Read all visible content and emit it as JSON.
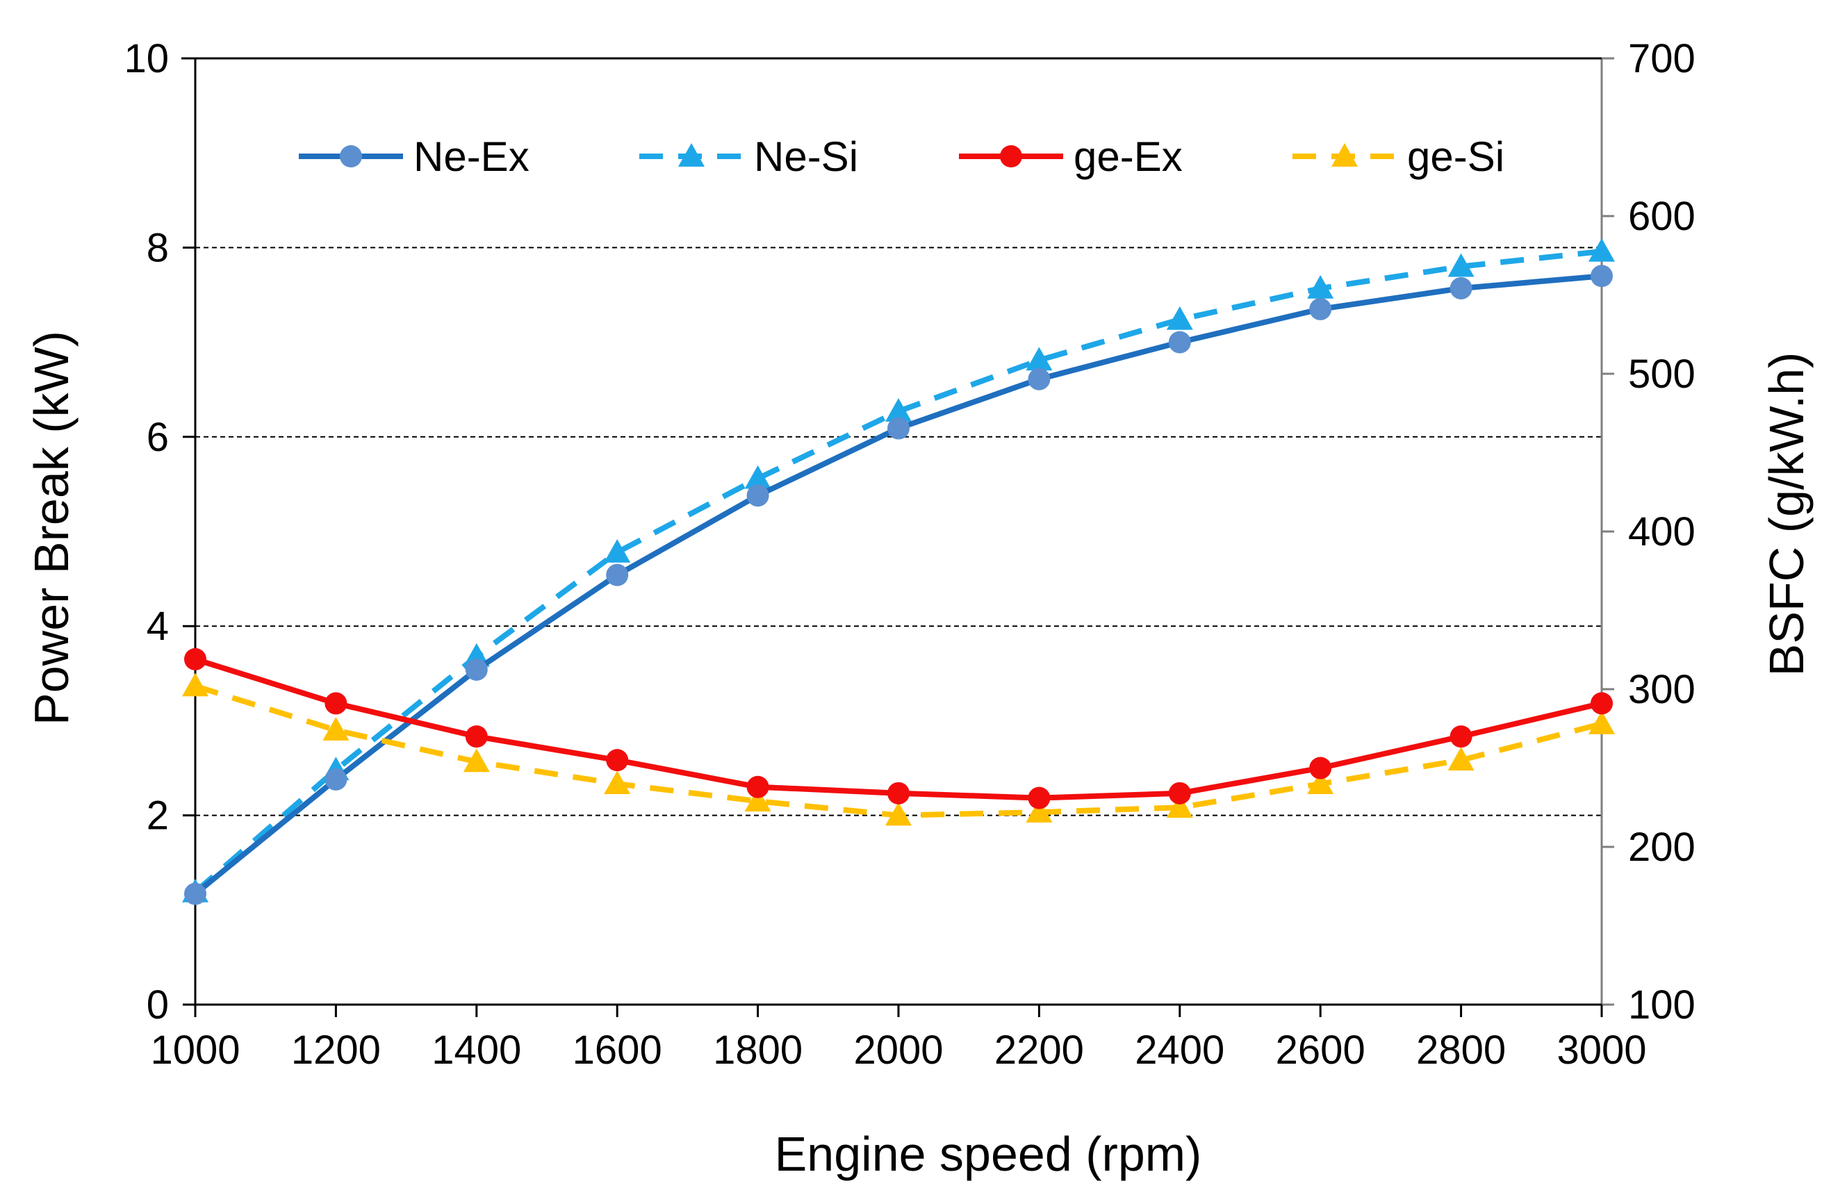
{
  "chart_data": {
    "type": "line",
    "title": "",
    "xlabel": "Engine speed (rpm)",
    "ylabel": "Power Break (kW)",
    "y2label": "BSFC (g/kW.h)",
    "x": [
      1000,
      1200,
      1400,
      1600,
      1800,
      2000,
      2200,
      2400,
      2600,
      2800,
      3000
    ],
    "xlim": [
      1000,
      3000
    ],
    "ylim": [
      0,
      10
    ],
    "y2lim": [
      100,
      700
    ],
    "xticks": [
      "1000",
      "1200",
      "1400",
      "1600",
      "1800",
      "2000",
      "2200",
      "2400",
      "2600",
      "2800",
      "3000"
    ],
    "yticks": [
      "0",
      "2",
      "4",
      "6",
      "8",
      "10"
    ],
    "y2ticks": [
      "100",
      "200",
      "300",
      "400",
      "500",
      "600",
      "700"
    ],
    "grid": "horizontal dashed at y = 2, 4, 6, 8",
    "legend_position": "top",
    "series": [
      {
        "name": "Ne-Ex",
        "axis": "left",
        "color": "#1f6fbf",
        "line": "solid",
        "marker": "circle",
        "marker_color": "#5b8fd0",
        "values": [
          1.17,
          2.38,
          3.54,
          4.54,
          5.38,
          6.09,
          6.61,
          7.0,
          7.35,
          7.57,
          7.7
        ]
      },
      {
        "name": "Ne-Si",
        "axis": "left",
        "color": "#1ea7e8",
        "line": "dashed",
        "marker": "triangle",
        "marker_color": "#1ea7e8",
        "values": [
          1.19,
          2.48,
          3.68,
          4.78,
          5.56,
          6.27,
          6.81,
          7.24,
          7.57,
          7.8,
          7.96
        ]
      },
      {
        "name": "ge-Ex",
        "axis": "right",
        "color": "#f20d0d",
        "line": "solid",
        "marker": "circle",
        "marker_color": "#f20d0d",
        "values": [
          319,
          291,
          270,
          255,
          238,
          234,
          231,
          234,
          250,
          270,
          291
        ]
      },
      {
        "name": "ge-Si",
        "axis": "right",
        "color": "#ffc000",
        "line": "dashed",
        "marker": "triangle",
        "marker_color": "#ffc000",
        "values": [
          302,
          274,
          254,
          240,
          229,
          220,
          222,
          225,
          240,
          255,
          278
        ]
      }
    ]
  }
}
